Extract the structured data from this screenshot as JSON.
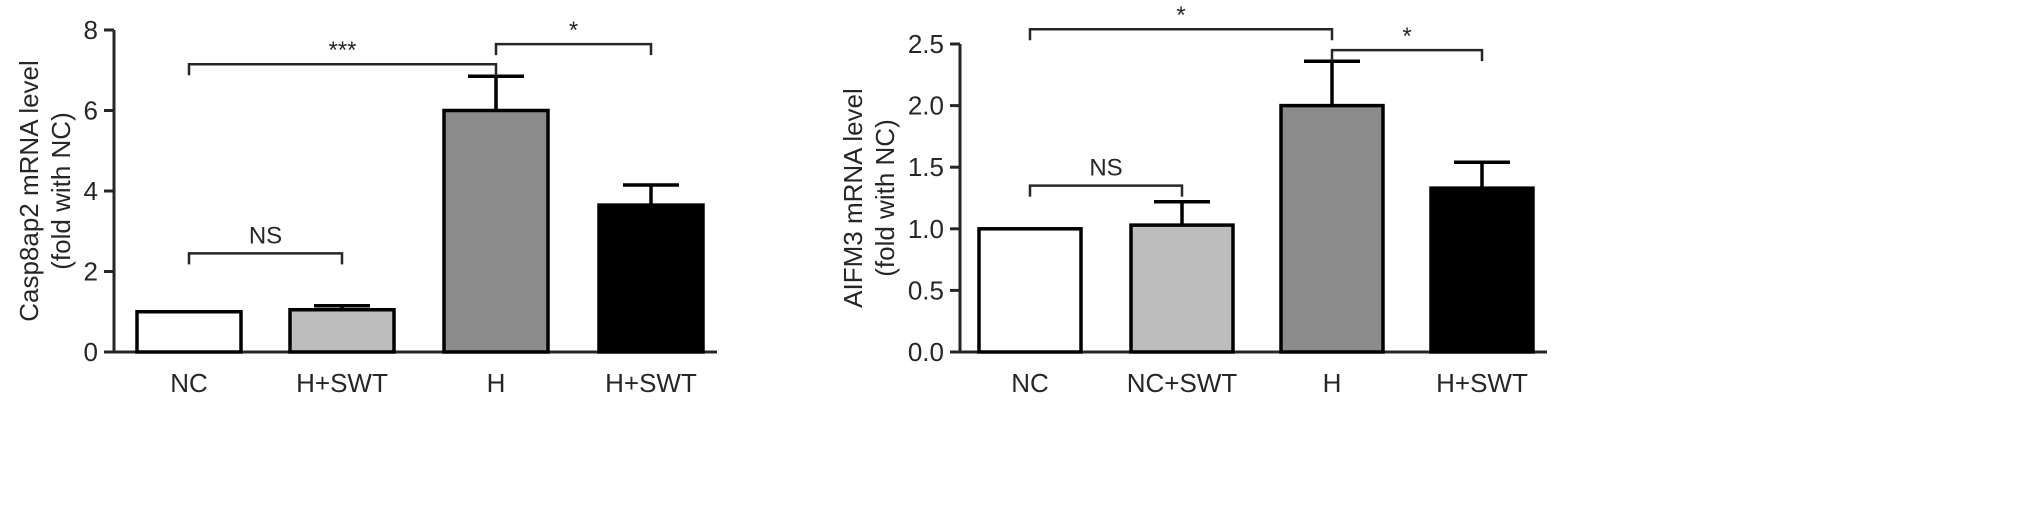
{
  "chart_data": [
    {
      "type": "bar",
      "categories": [
        "NC",
        "H+SWT",
        "H",
        "H+SWT"
      ],
      "values": [
        1.0,
        1.05,
        6.0,
        3.65
      ],
      "errors": [
        0.0,
        0.1,
        0.85,
        0.5
      ],
      "bar_colors": [
        "#ffffff",
        "#bdbdbd",
        "#8c8c8c",
        "#000000"
      ],
      "ylabel_line1": "Casp8ap2 mRNA level",
      "ylabel_line2": "(fold with NC)",
      "ylim": [
        0,
        8
      ],
      "yticks": [
        0,
        2,
        4,
        6,
        8
      ],
      "ytick_labels": [
        "0",
        "2",
        "4",
        "6",
        "8"
      ],
      "significance": [
        {
          "from": 0,
          "to": 1,
          "label": "NS",
          "y": 2.45
        },
        {
          "from": 0,
          "to": 2,
          "label": "***",
          "y": 7.15
        },
        {
          "from": 2,
          "to": 3,
          "label": "*",
          "y": 7.65
        }
      ]
    },
    {
      "type": "bar",
      "categories": [
        "NC",
        "NC+SWT",
        "H",
        "H+SWT"
      ],
      "values": [
        1.0,
        1.03,
        2.0,
        1.33
      ],
      "errors": [
        0.0,
        0.19,
        0.36,
        0.21
      ],
      "bar_colors": [
        "#ffffff",
        "#bdbdbd",
        "#8c8c8c",
        "#000000"
      ],
      "ylabel_line1": "AIFM3 mRNA level",
      "ylabel_line2": "(fold with NC)",
      "ylim": [
        0,
        2.5
      ],
      "yticks": [
        0,
        0.5,
        1.0,
        1.5,
        2.0,
        2.5
      ],
      "ytick_labels": [
        "0.0",
        "0.5",
        "1.0",
        "1.5",
        "2.0",
        "2.5"
      ],
      "significance": [
        {
          "from": 0,
          "to": 1,
          "label": "NS",
          "y": 1.35
        },
        {
          "from": 0,
          "to": 2,
          "label": "*",
          "y": 2.62
        },
        {
          "from": 2,
          "to": 3,
          "label": "*",
          "y": 2.45
        }
      ]
    }
  ]
}
